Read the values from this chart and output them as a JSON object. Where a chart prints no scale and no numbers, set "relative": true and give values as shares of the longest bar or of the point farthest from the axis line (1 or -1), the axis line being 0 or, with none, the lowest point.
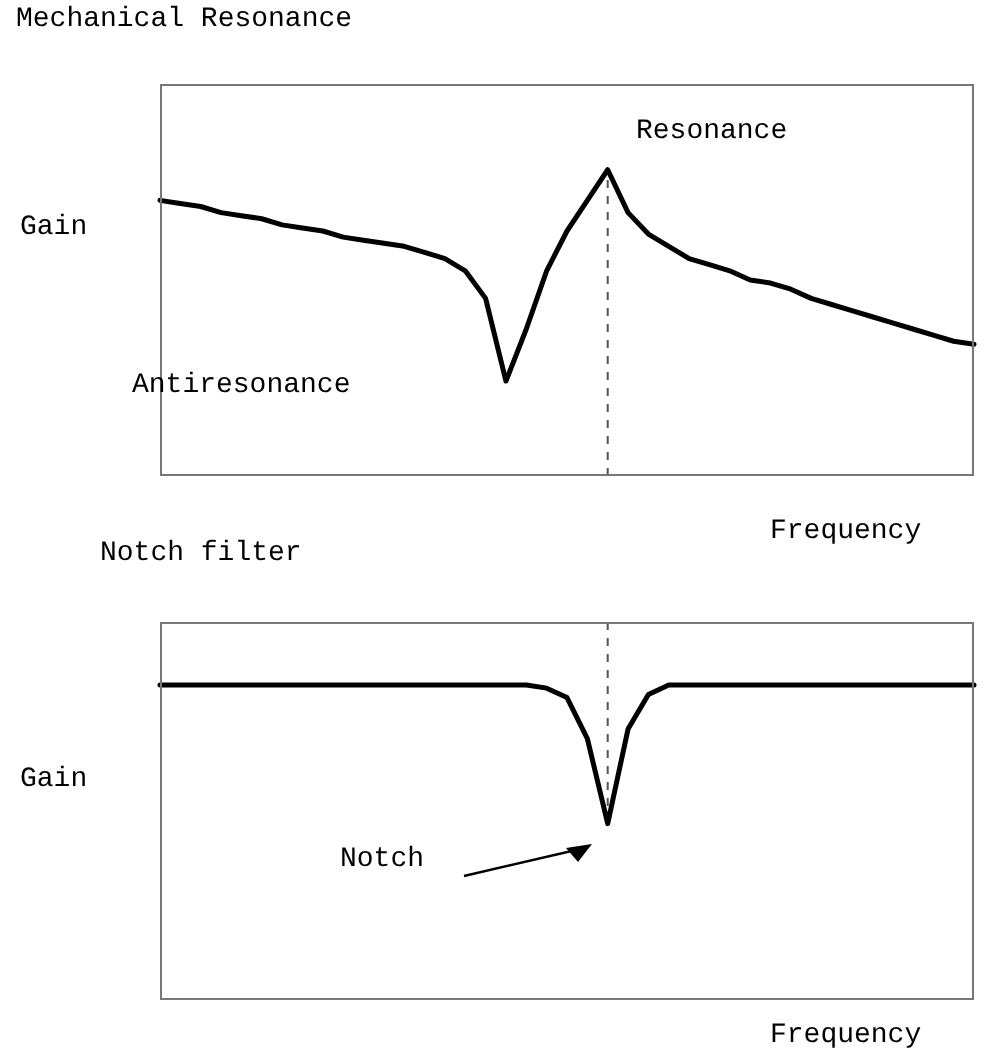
{
  "chart_data": [
    {
      "type": "line",
      "title": "Mechanical Resonance",
      "ylabel": "Gain",
      "xlabel": "Frequency",
      "relative": true,
      "legend": false,
      "grid": false,
      "marker": "none",
      "line_style": "solid",
      "categories": [
        null,
        null,
        null,
        null,
        null,
        null,
        null,
        null,
        null,
        null,
        null,
        null,
        null,
        null,
        null,
        null,
        null,
        null,
        null,
        null,
        null,
        null,
        null,
        null,
        null,
        null,
        null,
        null,
        null,
        null,
        null,
        null,
        null,
        null,
        null,
        null,
        null,
        null,
        null,
        null,
        null
      ],
      "series": [
        {
          "color": "#000000",
          "values": [
            0.9,
            0.89,
            0.88,
            0.86,
            0.85,
            0.84,
            0.82,
            0.81,
            0.8,
            0.78,
            0.77,
            0.76,
            0.75,
            0.73,
            0.71,
            0.67,
            0.58,
            0.31,
            0.48,
            0.67,
            0.8,
            0.9,
            1,
            0.86,
            0.79,
            0.75,
            0.71,
            0.69,
            0.67,
            0.64,
            0.63,
            0.61,
            0.58,
            0.56,
            0.54,
            0.52,
            0.5,
            0.48,
            0.46,
            0.44,
            0.43
          ]
        }
      ],
      "annotations": [
        "Resonance",
        "Antiresonance"
      ]
    },
    {
      "type": "line",
      "title": "Notch filter",
      "ylabel": "Gain",
      "xlabel": "Frequency",
      "relative": true,
      "legend": false,
      "grid": false,
      "marker": "none",
      "line_style": "solid",
      "categories": [
        null,
        null,
        null,
        null,
        null,
        null,
        null,
        null,
        null,
        null,
        null,
        null,
        null,
        null,
        null,
        null,
        null,
        null,
        null,
        null,
        null,
        null,
        null,
        null,
        null,
        null,
        null,
        null,
        null,
        null,
        null,
        null,
        null,
        null,
        null,
        null,
        null,
        null,
        null,
        null,
        null
      ],
      "series": [
        {
          "color": "#000000",
          "values": [
            1,
            1,
            1,
            1,
            1,
            1,
            1,
            1,
            1,
            1,
            1,
            1,
            1,
            1,
            1,
            1,
            1,
            1,
            1,
            0.99,
            0.96,
            0.83,
            0.56,
            0.86,
            0.97,
            1,
            1,
            1,
            1,
            1,
            1,
            1,
            1,
            1,
            1,
            1,
            1,
            1,
            1,
            1,
            1
          ]
        }
      ],
      "annotations": [
        "Notch"
      ]
    }
  ]
}
